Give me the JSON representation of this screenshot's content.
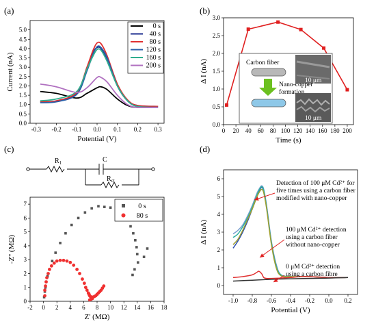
{
  "panels": {
    "a": "(a)",
    "b": "(b)",
    "c": "(c)",
    "d": "(d)"
  },
  "chart_data": [
    {
      "id": "a",
      "type": "line",
      "xlabel": "Potential (V)",
      "ylabel": "Current (nA)",
      "xlim": [
        -0.33,
        0.33
      ],
      "ylim": [
        0,
        5.5
      ],
      "xticks": [
        "-0.3",
        "-0.2",
        "-0.1",
        "0.0",
        "0.1",
        "0.2",
        "0.3"
      ],
      "yticks": [
        "0.0",
        "0.5",
        "1.0",
        "1.5",
        "2.0",
        "2.5",
        "3.0",
        "3.5",
        "4.0",
        "4.5",
        "5.0"
      ],
      "legend_position": "top-right",
      "series": [
        {
          "name": "0 s",
          "color": "#000000",
          "x": [
            -0.28,
            -0.2,
            -0.1,
            -0.05,
            0.0,
            0.02,
            0.05,
            0.1,
            0.15,
            0.2,
            0.3
          ],
          "y": [
            1.7,
            1.6,
            1.35,
            1.6,
            1.9,
            1.95,
            1.8,
            1.3,
            0.95,
            0.85,
            0.9
          ]
        },
        {
          "name": "40 s",
          "color": "#1f2f8f",
          "x": [
            -0.28,
            -0.2,
            -0.1,
            -0.05,
            -0.02,
            0.0,
            0.02,
            0.05,
            0.1,
            0.15,
            0.2,
            0.3
          ],
          "y": [
            1.15,
            1.2,
            1.6,
            2.9,
            3.8,
            4.05,
            4.0,
            3.4,
            2.0,
            1.2,
            0.95,
            0.9
          ]
        },
        {
          "name": "80 s",
          "color": "#e03030",
          "x": [
            -0.28,
            -0.2,
            -0.1,
            -0.05,
            -0.02,
            0.0,
            0.02,
            0.05,
            0.1,
            0.15,
            0.2,
            0.3
          ],
          "y": [
            1.15,
            1.2,
            1.65,
            3.0,
            3.9,
            4.3,
            4.25,
            3.6,
            2.1,
            1.25,
            0.95,
            0.9
          ]
        },
        {
          "name": "120 s",
          "color": "#2a5fa8",
          "x": [
            -0.28,
            -0.2,
            -0.1,
            -0.05,
            -0.02,
            0.0,
            0.02,
            0.05,
            0.1,
            0.15,
            0.2,
            0.3
          ],
          "y": [
            1.1,
            1.15,
            1.55,
            2.8,
            3.7,
            4.1,
            4.05,
            3.5,
            2.0,
            1.2,
            0.9,
            0.85
          ]
        },
        {
          "name": "160 s",
          "color": "#2fae8e",
          "x": [
            -0.28,
            -0.2,
            -0.1,
            -0.05,
            -0.02,
            0.0,
            0.02,
            0.05,
            0.1,
            0.15,
            0.2,
            0.3
          ],
          "y": [
            1.2,
            1.3,
            1.7,
            2.9,
            3.6,
            3.95,
            3.9,
            3.3,
            2.0,
            1.2,
            0.9,
            0.85
          ]
        },
        {
          "name": "200 s",
          "color": "#b070c0",
          "x": [
            -0.28,
            -0.2,
            -0.1,
            -0.05,
            0.0,
            0.02,
            0.05,
            0.1,
            0.15,
            0.2,
            0.3
          ],
          "y": [
            2.1,
            1.95,
            1.65,
            1.9,
            2.45,
            2.45,
            2.2,
            1.5,
            1.0,
            0.85,
            0.85
          ]
        }
      ]
    },
    {
      "id": "b",
      "type": "line",
      "xlabel": "Time (s)",
      "ylabel": "Δ I (nA)",
      "xlim": [
        0,
        210
      ],
      "ylim": [
        0,
        3.0
      ],
      "xticks": [
        "0",
        "20",
        "40",
        "60",
        "80",
        "100",
        "120",
        "140",
        "160",
        "180",
        "200"
      ],
      "yticks": [
        "0.0",
        "0.5",
        "1.0",
        "1.5",
        "2.0",
        "2.5",
        "3.0"
      ],
      "color": "#e02020",
      "x": [
        5,
        40,
        88,
        125,
        162,
        200
      ],
      "y": [
        0.55,
        2.68,
        2.88,
        2.67,
        2.15,
        0.98
      ],
      "inset": {
        "label1": "Carbon fiber",
        "label2": "Nano-copper",
        "label3": "formation",
        "scale1": "10 μm",
        "scale2": "10 μm"
      }
    },
    {
      "id": "c",
      "type": "scatter",
      "xlabel": "Z' (MΩ)",
      "ylabel": "-Z'' (MΩ)",
      "xlim": [
        -2,
        18
      ],
      "ylim": [
        0,
        7.5
      ],
      "xticks": [
        "-2",
        "0",
        "2",
        "4",
        "6",
        "8",
        "10",
        "12",
        "14",
        "16",
        "18"
      ],
      "yticks": [
        "0",
        "1",
        "2",
        "3",
        "4",
        "5",
        "6",
        "7"
      ],
      "legend_position": "top-right",
      "circuit": {
        "r1": "R",
        "r1_sub": "1",
        "c": "C",
        "rct": "R",
        "rct_sub": "ct"
      },
      "series": [
        {
          "name": "0 s",
          "color": "#555555",
          "x": [
            0.1,
            0.2,
            0.3,
            0.4,
            0.6,
            0.9,
            1.3,
            1.8,
            2.5,
            3.3,
            4.2,
            5.2,
            6.2,
            7.2,
            8.2,
            9.1,
            10.0,
            10.9,
            11.7,
            12.4,
            13.0,
            13.4,
            13.7,
            13.9,
            14.0,
            14.1,
            13.6,
            13.3,
            15.0,
            15.5
          ],
          "y": [
            0.3,
            0.7,
            1.0,
            1.4,
            1.8,
            2.3,
            2.9,
            3.5,
            4.2,
            4.9,
            5.5,
            6.0,
            6.4,
            6.7,
            6.85,
            6.8,
            6.75,
            6.6,
            6.3,
            5.9,
            5.4,
            4.9,
            4.4,
            3.9,
            3.4,
            2.8,
            2.3,
            1.9,
            3.2,
            3.8
          ]
        },
        {
          "name": "80 s",
          "color": "#f03030",
          "x": [
            0.2,
            0.2,
            0.3,
            0.4,
            0.5,
            0.7,
            0.9,
            1.2,
            1.6,
            2.0,
            2.5,
            3.0,
            3.5,
            4.0,
            4.5,
            5.0,
            5.4,
            5.8,
            6.1,
            6.3,
            6.5,
            6.7,
            6.8,
            6.9,
            7.0,
            7.1,
            7.2,
            7.4,
            7.6,
            7.8,
            8.0,
            8.2,
            8.4,
            8.6,
            8.8,
            9.0,
            6.9,
            7.1,
            7.3
          ],
          "y": [
            0.4,
            0.8,
            1.1,
            1.4,
            1.7,
            2.0,
            2.3,
            2.55,
            2.75,
            2.9,
            2.95,
            2.95,
            2.9,
            2.8,
            2.6,
            2.3,
            2.0,
            1.6,
            1.3,
            1.0,
            0.8,
            0.6,
            0.5,
            0.4,
            0.35,
            0.3,
            0.3,
            0.3,
            0.35,
            0.4,
            0.5,
            0.6,
            0.7,
            0.8,
            0.95,
            1.1,
            0.1,
            0.15,
            0.2
          ]
        }
      ]
    },
    {
      "id": "d",
      "type": "line",
      "xlabel": "Potential (V)",
      "ylabel": "Δ I (nA)",
      "xlim": [
        -1.1,
        0.3
      ],
      "ylim": [
        -0.5,
        6.5
      ],
      "xticks": [
        "-1.0",
        "-0.8",
        "-0.6",
        "-0.4",
        "-0.2",
        "0.0",
        "0.2"
      ],
      "yticks": [
        "0",
        "1",
        "2",
        "3",
        "4",
        "5",
        "6"
      ],
      "annotations": [
        {
          "lines": [
            "Detection of 100 μM Cd²⁺ for",
            "five times using a carbon fiber",
            "modified with nano-copper"
          ]
        },
        {
          "lines": [
            "100 μM Cd²⁺ detection",
            "using a carbon fiber",
            "without nano-copper"
          ]
        },
        {
          "lines": [
            "0 μM Cd²⁺ detection",
            "using a carbon fibre"
          ]
        }
      ],
      "series": [
        {
          "color": "#7aa0d0",
          "x": [
            -1.0,
            -0.95,
            -0.9,
            -0.85,
            -0.8,
            -0.75,
            -0.72,
            -0.7,
            -0.68,
            -0.65,
            -0.6,
            -0.55,
            -0.5,
            -0.4,
            -0.2,
            0.0,
            0.2
          ],
          "y": [
            2.9,
            3.1,
            3.4,
            3.9,
            4.5,
            5.2,
            5.5,
            5.6,
            5.4,
            4.5,
            2.5,
            1.2,
            0.6,
            0.5,
            0.5,
            0.45,
            0.45
          ]
        },
        {
          "color": "#3050b0",
          "x": [
            -1.0,
            -0.95,
            -0.9,
            -0.85,
            -0.8,
            -0.75,
            -0.72,
            -0.7,
            -0.68,
            -0.65,
            -0.6,
            -0.55,
            -0.5,
            -0.4,
            -0.2,
            0.0,
            0.2
          ],
          "y": [
            2.1,
            2.5,
            3.0,
            3.6,
            4.3,
            5.0,
            5.4,
            5.5,
            5.3,
            4.4,
            2.4,
            1.1,
            0.6,
            0.5,
            0.5,
            0.45,
            0.45
          ]
        },
        {
          "color": "#30b0a0",
          "x": [
            -1.0,
            -0.95,
            -0.9,
            -0.85,
            -0.8,
            -0.75,
            -0.72,
            -0.7,
            -0.68,
            -0.65,
            -0.6,
            -0.55,
            -0.5,
            -0.4,
            -0.2,
            0.0,
            0.2
          ],
          "y": [
            2.7,
            2.9,
            3.3,
            3.8,
            4.4,
            5.1,
            5.45,
            5.55,
            5.35,
            4.4,
            2.4,
            1.1,
            0.6,
            0.5,
            0.5,
            0.45,
            0.45
          ]
        },
        {
          "color": "#a0a030",
          "x": [
            -1.0,
            -0.95,
            -0.9,
            -0.85,
            -0.8,
            -0.75,
            -0.72,
            -0.7,
            -0.68,
            -0.65,
            -0.6,
            -0.55,
            -0.5,
            -0.4,
            -0.2,
            0.0,
            0.2
          ],
          "y": [
            2.3,
            2.6,
            3.1,
            3.7,
            4.3,
            5.0,
            5.3,
            5.4,
            5.2,
            4.3,
            2.3,
            1.0,
            0.55,
            0.5,
            0.5,
            0.45,
            0.45
          ]
        },
        {
          "color": "#e03030",
          "x": [
            -1.0,
            -0.9,
            -0.8,
            -0.75,
            -0.73,
            -0.7,
            -0.68,
            -0.65,
            -0.6,
            -0.5,
            -0.4,
            -0.3,
            -0.2,
            0.0,
            0.2
          ],
          "y": [
            0.45,
            0.5,
            0.6,
            0.75,
            0.8,
            0.65,
            0.45,
            0.4,
            0.4,
            0.42,
            0.45,
            0.5,
            0.5,
            0.45,
            0.45
          ]
        },
        {
          "color": "#333333",
          "x": [
            -1.0,
            -0.8,
            -0.6,
            -0.4,
            -0.2,
            0.0,
            0.2
          ],
          "y": [
            0.25,
            0.3,
            0.35,
            0.38,
            0.4,
            0.42,
            0.45
          ]
        }
      ]
    }
  ]
}
